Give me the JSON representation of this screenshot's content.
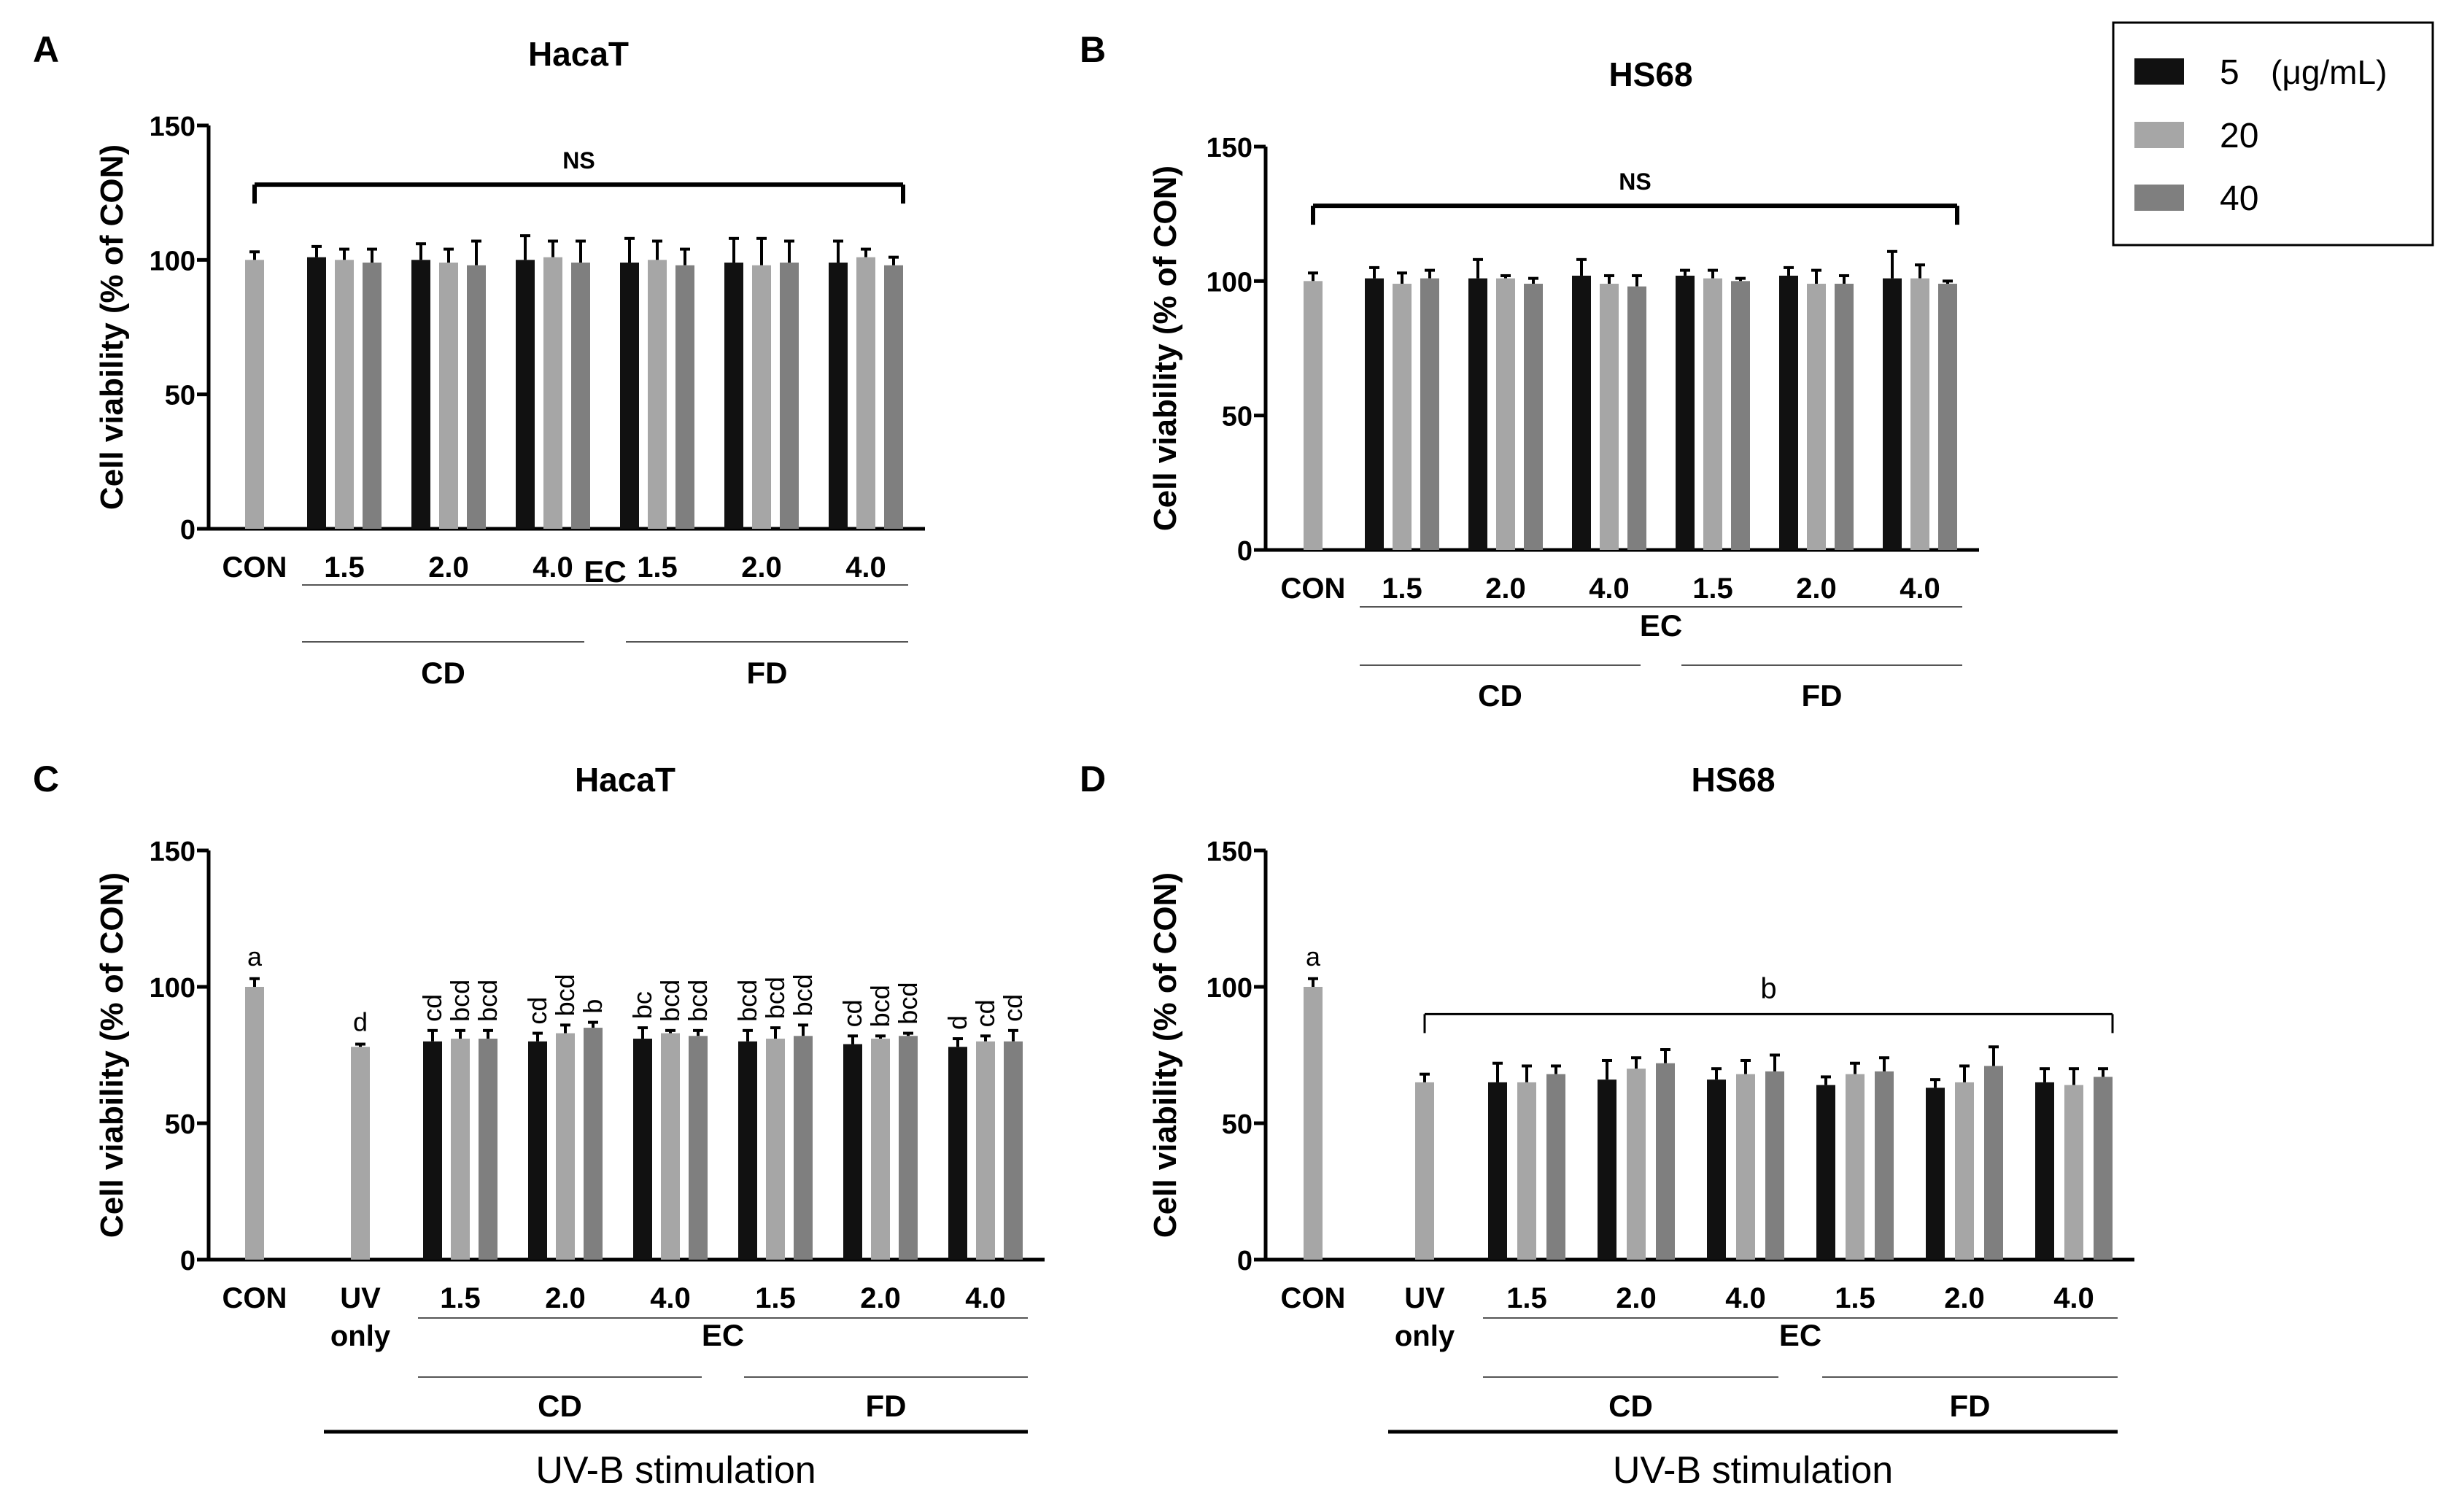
{
  "colors": {
    "s5": "#111111",
    "s20": "#a6a6a6",
    "s40": "#7f7f7f",
    "axis": "#000000",
    "subline": "#555555"
  },
  "legend": {
    "unit": "(μg/mL)",
    "items": [
      {
        "label": "5",
        "color": "#111111"
      },
      {
        "label": "20",
        "color": "#a6a6a6"
      },
      {
        "label": "40",
        "color": "#7f7f7f"
      }
    ]
  },
  "chart_data": [
    {
      "type": "bar",
      "panel": "A",
      "title": "HacaT",
      "ylabel": "Cell viability (% of CON)",
      "ylim": [
        0,
        150
      ],
      "yticks": [
        "0",
        "50",
        "100",
        "150"
      ],
      "con": {
        "label": "CON",
        "value": 100,
        "err": 3
      },
      "uv": null,
      "groups": [
        {
          "label": "1.5",
          "values": [
            101,
            100,
            99
          ],
          "errs": [
            4,
            4,
            5
          ]
        },
        {
          "label": "2.0",
          "values": [
            100,
            99,
            98
          ],
          "errs": [
            6,
            5,
            9
          ]
        },
        {
          "label": "4.0",
          "values": [
            100,
            101,
            99
          ],
          "errs": [
            9,
            6,
            8
          ]
        },
        {
          "label": "1.5",
          "values": [
            99,
            100,
            98
          ],
          "errs": [
            9,
            7,
            6
          ]
        },
        {
          "label": "2.0",
          "values": [
            99,
            98,
            99
          ],
          "errs": [
            9,
            10,
            8
          ]
        },
        {
          "label": "4.0",
          "values": [
            99,
            101,
            98
          ],
          "errs": [
            8,
            3,
            3
          ]
        }
      ],
      "series_names": [
        "5",
        "20",
        "40"
      ],
      "ec_label": "EC",
      "cd_label": "CD",
      "fd_label": "FD",
      "bracket": {
        "label": "NS",
        "from": "CON",
        "to": "last",
        "y": 128
      },
      "letters": null,
      "uvb_label": null
    },
    {
      "type": "bar",
      "panel": "B",
      "title": "HS68",
      "ylabel": "Cell viability (% of CON)",
      "ylim": [
        0,
        150
      ],
      "yticks": [
        "0",
        "50",
        "100",
        "150"
      ],
      "con": {
        "label": "CON",
        "value": 100,
        "err": 3
      },
      "uv": null,
      "groups": [
        {
          "label": "1.5",
          "values": [
            101,
            99,
            101
          ],
          "errs": [
            4,
            4,
            3
          ]
        },
        {
          "label": "2.0",
          "values": [
            101,
            101,
            99
          ],
          "errs": [
            7,
            1,
            2
          ]
        },
        {
          "label": "4.0",
          "values": [
            102,
            99,
            98
          ],
          "errs": [
            6,
            3,
            4
          ]
        },
        {
          "label": "1.5",
          "values": [
            102,
            101,
            100
          ],
          "errs": [
            2,
            3,
            1
          ]
        },
        {
          "label": "2.0",
          "values": [
            102,
            99,
            99
          ],
          "errs": [
            3,
            5,
            3
          ]
        },
        {
          "label": "4.0",
          "values": [
            101,
            101,
            99
          ],
          "errs": [
            10,
            5,
            1
          ]
        }
      ],
      "series_names": [
        "5",
        "20",
        "40"
      ],
      "ec_label": "EC",
      "cd_label": "CD",
      "fd_label": "FD",
      "bracket": {
        "label": "NS",
        "from": "CON",
        "to": "last",
        "y": 128
      },
      "letters": null,
      "uvb_label": null
    },
    {
      "type": "bar",
      "panel": "C",
      "title": "HacaT",
      "ylabel": "Cell viability (% of CON)",
      "ylim": [
        0,
        150
      ],
      "yticks": [
        "0",
        "50",
        "100",
        "150"
      ],
      "con": {
        "label": "CON",
        "value": 100,
        "err": 3
      },
      "uv": {
        "label1": "UV",
        "label2": "only",
        "value": 78,
        "err": 1
      },
      "groups": [
        {
          "label": "1.5",
          "values": [
            80,
            81,
            81
          ],
          "errs": [
            4,
            3,
            3
          ]
        },
        {
          "label": "2.0",
          "values": [
            80,
            83,
            85
          ],
          "errs": [
            3,
            3,
            2
          ]
        },
        {
          "label": "4.0",
          "values": [
            81,
            83,
            82
          ],
          "errs": [
            4,
            1,
            2
          ]
        },
        {
          "label": "1.5",
          "values": [
            80,
            81,
            82
          ],
          "errs": [
            4,
            4,
            4
          ]
        },
        {
          "label": "2.0",
          "values": [
            79,
            81,
            82
          ],
          "errs": [
            3,
            1,
            1
          ]
        },
        {
          "label": "4.0",
          "values": [
            78,
            80,
            80
          ],
          "errs": [
            3,
            2,
            4
          ]
        }
      ],
      "series_names": [
        "5",
        "20",
        "40"
      ],
      "ec_label": "EC",
      "cd_label": "CD",
      "fd_label": "FD",
      "bracket": null,
      "letters": {
        "con": "a",
        "uv": "d",
        "groups": [
          [
            "cd",
            "bcd",
            "bcd"
          ],
          [
            "cd",
            "bcd",
            "b"
          ],
          [
            "bc",
            "bcd",
            "bcd"
          ],
          [
            "bcd",
            "bcd",
            "bcd"
          ],
          [
            "cd",
            "bcd",
            "bcd"
          ],
          [
            "d",
            "cd",
            "cd"
          ]
        ]
      },
      "uvb_label": "UV-B stimulation"
    },
    {
      "type": "bar",
      "panel": "D",
      "title": "HS68",
      "ylabel": "Cell viability (% of CON)",
      "ylim": [
        0,
        150
      ],
      "yticks": [
        "0",
        "50",
        "100",
        "150"
      ],
      "con": {
        "label": "CON",
        "value": 100,
        "err": 3
      },
      "uv": {
        "label1": "UV",
        "label2": "only",
        "value": 65,
        "err": 3
      },
      "groups": [
        {
          "label": "1.5",
          "values": [
            65,
            65,
            68
          ],
          "errs": [
            7,
            6,
            3
          ]
        },
        {
          "label": "2.0",
          "values": [
            66,
            70,
            72
          ],
          "errs": [
            7,
            4,
            5
          ]
        },
        {
          "label": "4.0",
          "values": [
            66,
            68,
            69
          ],
          "errs": [
            4,
            5,
            6
          ]
        },
        {
          "label": "1.5",
          "values": [
            64,
            68,
            69
          ],
          "errs": [
            3,
            4,
            5
          ]
        },
        {
          "label": "2.0",
          "values": [
            63,
            65,
            71
          ],
          "errs": [
            3,
            6,
            7
          ]
        },
        {
          "label": "4.0",
          "values": [
            65,
            64,
            67
          ],
          "errs": [
            5,
            6,
            3
          ]
        }
      ],
      "series_names": [
        "5",
        "20",
        "40"
      ],
      "ec_label": "EC",
      "cd_label": "CD",
      "fd_label": "FD",
      "bracket": {
        "label": "b",
        "from": "UV",
        "to": "last",
        "y": 90
      },
      "letters": {
        "con": "a",
        "uv": null,
        "groups": null
      },
      "uvb_label": "UV-B stimulation"
    }
  ]
}
